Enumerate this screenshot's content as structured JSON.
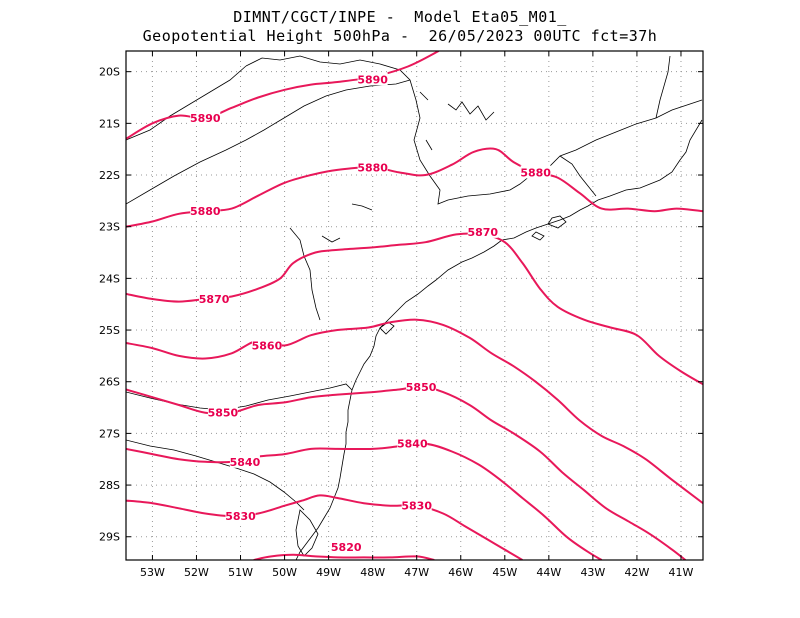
{
  "title_line1": "DIMNT/CGCT/INPE -  Model Eta05_M01_",
  "title_line2": "Geopotential Height 500hPa -  26/05/2023 00UTC fct=37h",
  "colors": {
    "contour": "#e8185a",
    "label": "#e8004f",
    "coast": "#000000",
    "grid": "#9a9a9a"
  },
  "axes": {
    "lon_range": [
      -53.6,
      -40.5
    ],
    "lat_range": [
      -29.45,
      -19.6
    ],
    "lat_ticks": [
      {
        "value": -20,
        "label": "20S"
      },
      {
        "value": -21,
        "label": "21S"
      },
      {
        "value": -22,
        "label": "22S"
      },
      {
        "value": -23,
        "label": "23S"
      },
      {
        "value": -24,
        "label": "24S"
      },
      {
        "value": -25,
        "label": "25S"
      },
      {
        "value": -26,
        "label": "26S"
      },
      {
        "value": -27,
        "label": "27S"
      },
      {
        "value": -28,
        "label": "28S"
      },
      {
        "value": -29,
        "label": "29S"
      }
    ],
    "lon_ticks": [
      {
        "value": -53,
        "label": "53W"
      },
      {
        "value": -52,
        "label": "52W"
      },
      {
        "value": -51,
        "label": "51W"
      },
      {
        "value": -50,
        "label": "50W"
      },
      {
        "value": -49,
        "label": "49W"
      },
      {
        "value": -48,
        "label": "48W"
      },
      {
        "value": -47,
        "label": "47W"
      },
      {
        "value": -46,
        "label": "46W"
      },
      {
        "value": -45,
        "label": "45W"
      },
      {
        "value": -44,
        "label": "44W"
      },
      {
        "value": -43,
        "label": "43W"
      },
      {
        "value": -42,
        "label": "42W"
      },
      {
        "value": -41,
        "label": "41W"
      }
    ],
    "grid": "dotted"
  },
  "contours": [
    {
      "level": 5890,
      "label": "5890",
      "points": [
        [
          -53.6,
          -21.3
        ],
        [
          -53.0,
          -21.0
        ],
        [
          -52.4,
          -20.85
        ],
        [
          -51.8,
          -20.9
        ],
        [
          -51.2,
          -20.7
        ],
        [
          -50.6,
          -20.5
        ],
        [
          -50.0,
          -20.35
        ],
        [
          -49.4,
          -20.25
        ],
        [
          -48.8,
          -20.2
        ],
        [
          -48.0,
          -20.1
        ],
        [
          -47.2,
          -19.9
        ],
        [
          -46.5,
          -19.6
        ]
      ],
      "label_pos": [
        [
          -51.8,
          -20.9
        ],
        [
          -48.0,
          -20.15
        ]
      ]
    },
    {
      "level": 5880,
      "label": "5880",
      "points": [
        [
          -53.6,
          -23.0
        ],
        [
          -53.0,
          -22.9
        ],
        [
          -52.4,
          -22.75
        ],
        [
          -51.8,
          -22.7
        ],
        [
          -51.2,
          -22.65
        ],
        [
          -50.6,
          -22.4
        ],
        [
          -50.0,
          -22.15
        ],
        [
          -49.4,
          -22.0
        ],
        [
          -48.8,
          -21.9
        ],
        [
          -48.0,
          -21.85
        ],
        [
          -47.4,
          -21.95
        ],
        [
          -46.8,
          -22.0
        ],
        [
          -46.2,
          -21.8
        ],
        [
          -45.7,
          -21.55
        ],
        [
          -45.2,
          -21.5
        ],
        [
          -44.8,
          -21.75
        ],
        [
          -44.3,
          -21.95
        ],
        [
          -43.8,
          -22.05
        ],
        [
          -43.3,
          -22.35
        ],
        [
          -42.8,
          -22.65
        ],
        [
          -42.2,
          -22.65
        ],
        [
          -41.6,
          -22.7
        ],
        [
          -41.1,
          -22.65
        ],
        [
          -40.5,
          -22.7
        ]
      ],
      "label_pos": [
        [
          -51.8,
          -22.7
        ],
        [
          -48.0,
          -21.85
        ],
        [
          -44.3,
          -21.95
        ]
      ]
    },
    {
      "level": 5870,
      "label": "5870",
      "points": [
        [
          -53.6,
          -24.3
        ],
        [
          -53.0,
          -24.4
        ],
        [
          -52.4,
          -24.45
        ],
        [
          -51.8,
          -24.4
        ],
        [
          -51.2,
          -24.35
        ],
        [
          -50.6,
          -24.2
        ],
        [
          -50.1,
          -24.0
        ],
        [
          -49.8,
          -23.7
        ],
        [
          -49.3,
          -23.5
        ],
        [
          -48.8,
          -23.45
        ],
        [
          -48.0,
          -23.4
        ],
        [
          -47.4,
          -23.35
        ],
        [
          -46.8,
          -23.3
        ],
        [
          -46.1,
          -23.15
        ],
        [
          -45.5,
          -23.15
        ],
        [
          -45.0,
          -23.3
        ],
        [
          -44.6,
          -23.7
        ],
        [
          -44.2,
          -24.2
        ],
        [
          -43.8,
          -24.55
        ],
        [
          -43.2,
          -24.8
        ],
        [
          -42.6,
          -24.95
        ],
        [
          -42.0,
          -25.1
        ],
        [
          -41.5,
          -25.5
        ],
        [
          -41.0,
          -25.8
        ],
        [
          -40.5,
          -26.05
        ]
      ],
      "label_pos": [
        [
          -51.6,
          -24.4
        ],
        [
          -45.5,
          -23.1
        ]
      ]
    },
    {
      "level": 5860,
      "label": "5860",
      "points": [
        [
          -53.6,
          -25.25
        ],
        [
          -53.0,
          -25.35
        ],
        [
          -52.4,
          -25.5
        ],
        [
          -51.8,
          -25.55
        ],
        [
          -51.2,
          -25.45
        ],
        [
          -50.6,
          -25.2
        ],
        [
          -50.0,
          -25.3
        ],
        [
          -49.4,
          -25.1
        ],
        [
          -48.8,
          -25.0
        ],
        [
          -48.1,
          -24.95
        ],
        [
          -47.6,
          -24.85
        ],
        [
          -47.0,
          -24.8
        ],
        [
          -46.4,
          -24.9
        ],
        [
          -45.8,
          -25.15
        ],
        [
          -45.3,
          -25.45
        ],
        [
          -44.8,
          -25.7
        ],
        [
          -44.3,
          -26.0
        ],
        [
          -43.8,
          -26.35
        ],
        [
          -43.3,
          -26.75
        ],
        [
          -42.8,
          -27.05
        ],
        [
          -42.3,
          -27.25
        ],
        [
          -41.8,
          -27.5
        ],
        [
          -41.2,
          -27.9
        ],
        [
          -40.5,
          -28.35
        ]
      ],
      "label_pos": [
        [
          -50.4,
          -25.3
        ]
      ]
    },
    {
      "level": 5850,
      "label": "5850",
      "points": [
        [
          -53.6,
          -26.15
        ],
        [
          -53.0,
          -26.3
        ],
        [
          -52.4,
          -26.45
        ],
        [
          -51.8,
          -26.6
        ],
        [
          -51.2,
          -26.6
        ],
        [
          -50.6,
          -26.45
        ],
        [
          -50.0,
          -26.4
        ],
        [
          -49.4,
          -26.3
        ],
        [
          -48.8,
          -26.25
        ],
        [
          -48.0,
          -26.2
        ],
        [
          -47.4,
          -26.15
        ],
        [
          -46.9,
          -26.1
        ],
        [
          -46.4,
          -26.2
        ],
        [
          -45.8,
          -26.45
        ],
        [
          -45.3,
          -26.75
        ],
        [
          -44.8,
          -27.0
        ],
        [
          -44.2,
          -27.35
        ],
        [
          -43.7,
          -27.75
        ],
        [
          -43.2,
          -28.1
        ],
        [
          -42.7,
          -28.45
        ],
        [
          -42.2,
          -28.7
        ],
        [
          -41.7,
          -28.95
        ],
        [
          -41.2,
          -29.25
        ],
        [
          -40.9,
          -29.45
        ]
      ],
      "label_pos": [
        [
          -51.4,
          -26.6
        ],
        [
          -46.9,
          -26.1
        ]
      ]
    },
    {
      "level": 5840,
      "label": "5840",
      "points": [
        [
          -53.6,
          -27.3
        ],
        [
          -53.0,
          -27.4
        ],
        [
          -52.4,
          -27.5
        ],
        [
          -51.8,
          -27.55
        ],
        [
          -51.2,
          -27.55
        ],
        [
          -50.6,
          -27.45
        ],
        [
          -50.0,
          -27.4
        ],
        [
          -49.4,
          -27.3
        ],
        [
          -48.8,
          -27.3
        ],
        [
          -48.0,
          -27.3
        ],
        [
          -47.4,
          -27.25
        ],
        [
          -46.8,
          -27.2
        ],
        [
          -46.2,
          -27.35
        ],
        [
          -45.6,
          -27.6
        ],
        [
          -45.1,
          -27.9
        ],
        [
          -44.6,
          -28.25
        ],
        [
          -44.1,
          -28.6
        ],
        [
          -43.6,
          -29.0
        ],
        [
          -43.1,
          -29.3
        ],
        [
          -42.8,
          -29.45
        ]
      ],
      "label_pos": [
        [
          -50.9,
          -27.55
        ],
        [
          -47.1,
          -27.2
        ]
      ]
    },
    {
      "level": 5830,
      "label": "5830",
      "points": [
        [
          -53.6,
          -28.3
        ],
        [
          -53.0,
          -28.35
        ],
        [
          -52.4,
          -28.45
        ],
        [
          -51.8,
          -28.55
        ],
        [
          -51.2,
          -28.6
        ],
        [
          -50.6,
          -28.55
        ],
        [
          -50.0,
          -28.4
        ],
        [
          -49.6,
          -28.3
        ],
        [
          -49.2,
          -28.2
        ],
        [
          -48.8,
          -28.25
        ],
        [
          -48.2,
          -28.35
        ],
        [
          -47.6,
          -28.4
        ],
        [
          -47.0,
          -28.4
        ],
        [
          -46.4,
          -28.55
        ],
        [
          -45.9,
          -28.8
        ],
        [
          -45.4,
          -29.05
        ],
        [
          -44.9,
          -29.3
        ],
        [
          -44.6,
          -29.45
        ]
      ],
      "label_pos": [
        [
          -51.0,
          -28.6
        ],
        [
          -47.0,
          -28.4
        ]
      ]
    },
    {
      "level": 5820,
      "label": "5820",
      "points": [
        [
          -50.7,
          -29.45
        ],
        [
          -50.3,
          -29.38
        ],
        [
          -49.8,
          -29.35
        ],
        [
          -49.3,
          -29.38
        ],
        [
          -48.8,
          -29.4
        ],
        [
          -48.2,
          -29.4
        ],
        [
          -47.6,
          -29.4
        ],
        [
          -47.0,
          -29.38
        ],
        [
          -46.6,
          -29.45
        ]
      ],
      "label_pos": [
        [
          -48.6,
          -29.2
        ]
      ]
    }
  ]
}
